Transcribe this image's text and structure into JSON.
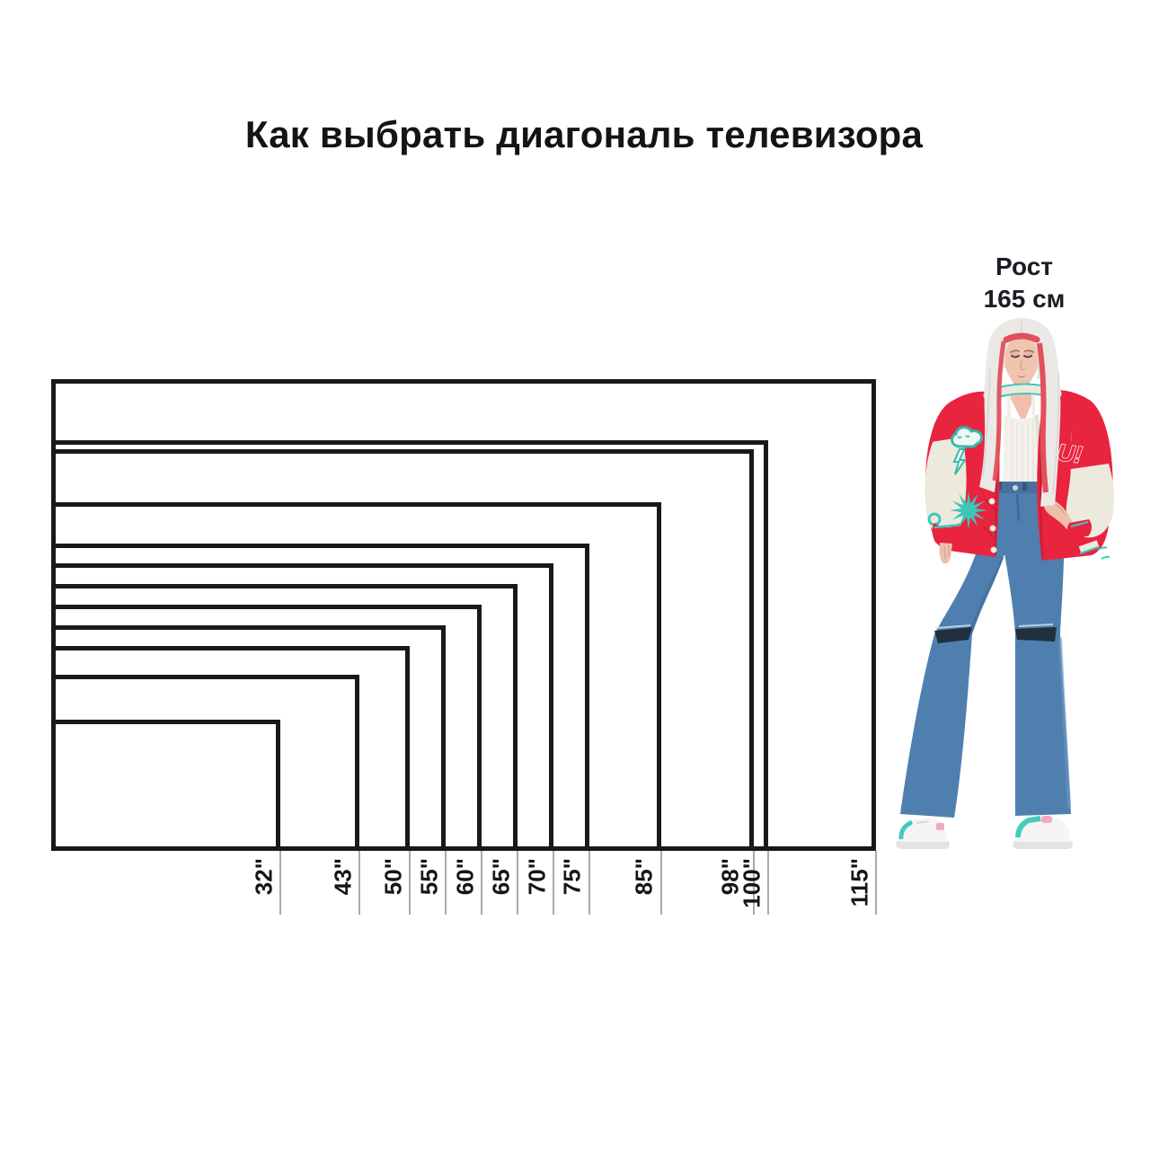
{
  "title": "Как выбрать диагональ телевизора",
  "person": {
    "label": [
      "Рост",
      "165 см"
    ],
    "height_cm": 165
  },
  "chart_data": {
    "type": "size-comparison",
    "title": "Как выбрать диагональ телевизора",
    "unit": "inches",
    "aspect_ratio": "16:9",
    "diagonals_in": [
      32,
      43,
      50,
      55,
      60,
      65,
      70,
      75,
      85,
      98,
      100,
      115
    ],
    "labels": [
      "32\"",
      "43\"",
      "50\"",
      "55\"",
      "60\"",
      "65\"",
      "70\"",
      "75\"",
      "85\"",
      "98\"",
      "100\"",
      "115\""
    ],
    "reference_person_height_cm": 165,
    "reference_person_label": "Рост 165 см",
    "legend_position": "none",
    "grid": false
  },
  "colors": {
    "rect_line": "#191919",
    "guide_line": "#aaaaaa",
    "text": "#141414",
    "jacket_red": "#e8243f",
    "jacket_cream": "#ece9dd",
    "accent_teal": "#3ec8ba",
    "denim_blue": "#4f7fae",
    "hair_white": "#ebe9e6",
    "skin": "#f0c5b0"
  }
}
